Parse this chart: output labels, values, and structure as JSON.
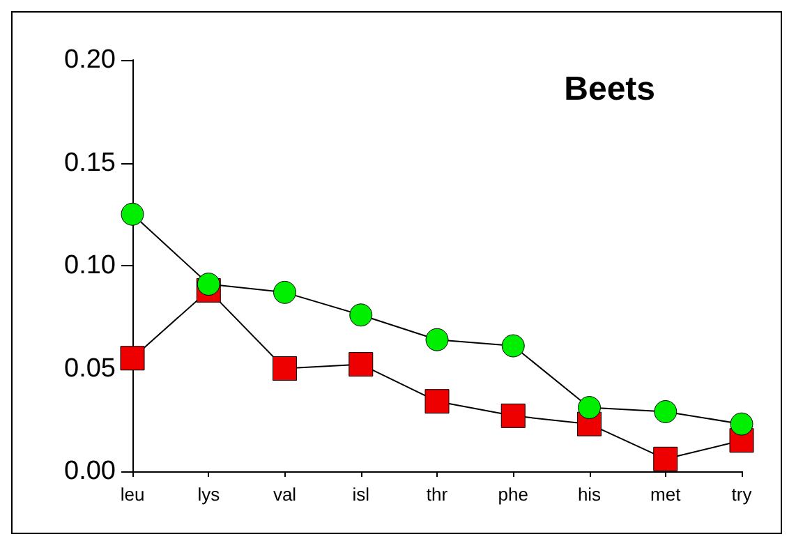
{
  "chart_data": {
    "type": "line",
    "title": "Beets",
    "categories": [
      "leu",
      "lys",
      "val",
      "isl",
      "thr",
      "phe",
      "his",
      "met",
      "try"
    ],
    "series": [
      {
        "color": "#00ee00",
        "marker": "circle",
        "values": [
          0.125,
          0.091,
          0.087,
          0.076,
          0.064,
          0.061,
          0.031,
          0.029,
          0.023
        ]
      },
      {
        "color": "#ee0000",
        "marker": "square",
        "values": [
          0.055,
          0.088,
          0.05,
          0.052,
          0.034,
          0.027,
          0.023,
          0.006,
          0.015
        ]
      }
    ],
    "ylim": [
      0,
      0.2
    ],
    "yticks": [
      {
        "value": 0,
        "label": "0.00"
      },
      {
        "value": 0.05,
        "label": "0.05"
      },
      {
        "value": 0.1,
        "label": "0.10"
      },
      {
        "value": 0.15,
        "label": "0.15"
      },
      {
        "value": 0.2,
        "label": "0.20"
      }
    ],
    "grid": false,
    "line_style": "solid"
  }
}
